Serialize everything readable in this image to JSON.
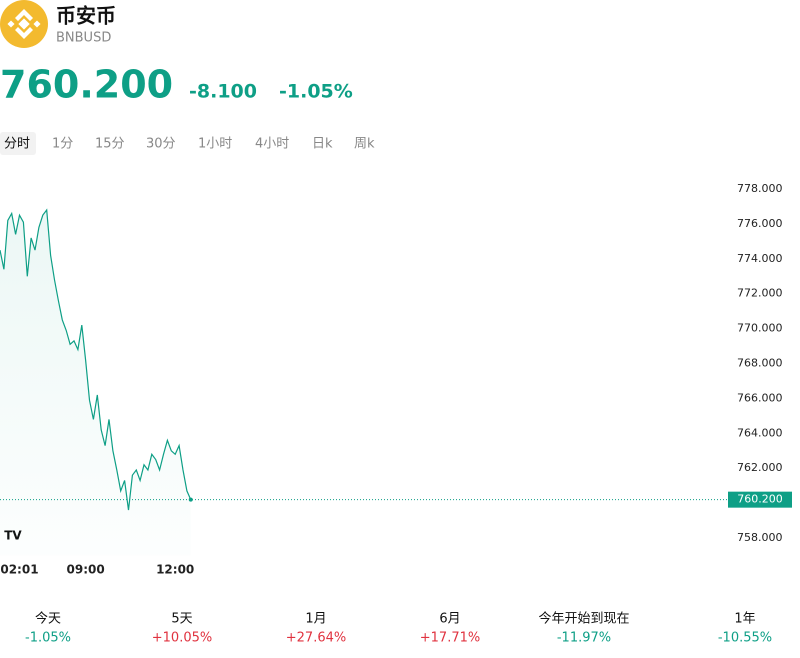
{
  "header": {
    "name": "币安币",
    "symbol": "BNBUSD"
  },
  "quote": {
    "price": "760.200",
    "change": "-8.100",
    "change_pct": "-1.05%"
  },
  "tabs": [
    "分时",
    "1分",
    "15分",
    "30分",
    "1小时",
    "4小时",
    "日k",
    "周k"
  ],
  "chart": {
    "type": "line",
    "color": "#0e9f86",
    "values": [
      774.5,
      773.4,
      776.2,
      776.6,
      775.4,
      776.5,
      776.1,
      773.0,
      775.2,
      774.5,
      775.8,
      776.5,
      776.8,
      774.2,
      772.8,
      771.6,
      770.5,
      769.9,
      769.1,
      769.3,
      768.8,
      770.2,
      768.2,
      765.9,
      764.8,
      766.2,
      764.2,
      763.3,
      764.8,
      763.0,
      761.9,
      760.7,
      761.3,
      759.6,
      761.6,
      761.9,
      761.3,
      762.2,
      761.9,
      762.8,
      762.5,
      761.9,
      762.8,
      763.6,
      763.0,
      762.8,
      763.3,
      761.9,
      760.7,
      760.2
    ],
    "xlim": [
      0,
      187
    ],
    "xticks": [
      {
        "value": 5,
        "label": "02:01"
      },
      {
        "value": 22,
        "label": "09:00"
      },
      {
        "value": 45,
        "label": "12:00"
      }
    ],
    "ylim": [
      757,
      779.4
    ],
    "yticks": [
      {
        "value": 758,
        "label": "758.000"
      },
      {
        "value": 760,
        "label": "760.000"
      },
      {
        "value": 762,
        "label": "762.000"
      },
      {
        "value": 764,
        "label": "764.000"
      },
      {
        "value": 766,
        "label": "766.000"
      },
      {
        "value": 768,
        "label": "768.000"
      },
      {
        "value": 770,
        "label": "770.000"
      },
      {
        "value": 772,
        "label": "772.000"
      },
      {
        "value": 774,
        "label": "774.000"
      },
      {
        "value": 776,
        "label": "776.000"
      },
      {
        "value": 778,
        "label": "778.000"
      }
    ],
    "last_price": {
      "value": 760.2,
      "label": "760.200"
    }
  },
  "periods": [
    {
      "label": "今天",
      "change": "-1.05%"
    },
    {
      "label": "5天",
      "change": "+10.05%"
    },
    {
      "label": "1月",
      "change": "+27.64%"
    },
    {
      "label": "6月",
      "change": "+17.71%"
    },
    {
      "label": "今年开始到现在",
      "change": "-11.97%"
    },
    {
      "label": "1年",
      "change": "-10.55%"
    }
  ]
}
